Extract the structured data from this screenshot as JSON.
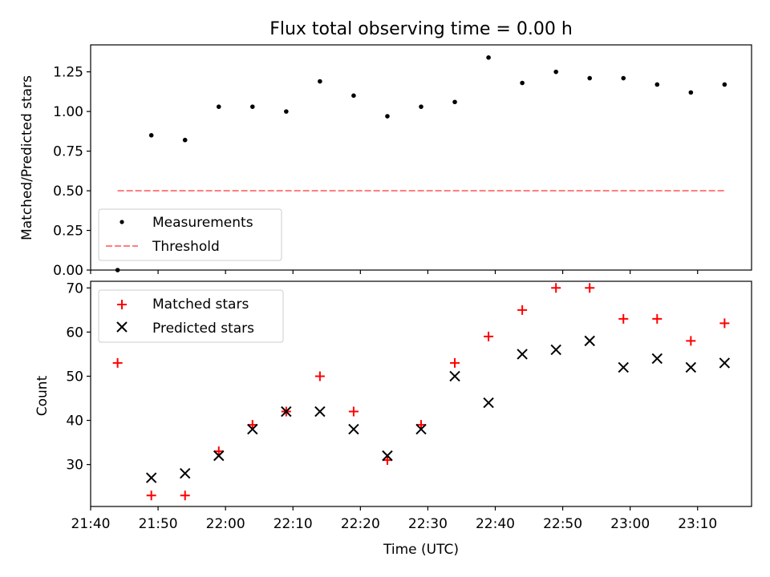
{
  "chart_data": [
    {
      "type": "scatter",
      "title": "Flux total observing time = 0.00 h",
      "xlabel": "",
      "ylabel": "Matched/Predicted stars",
      "ylim": [
        0,
        1.42
      ],
      "yticks": [
        0.0,
        0.25,
        0.5,
        0.75,
        1.0,
        1.25
      ],
      "ytick_labels": [
        "0.00",
        "0.25",
        "0.50",
        "0.75",
        "1.00",
        "1.25"
      ],
      "x": [
        "21:44",
        "21:49",
        "21:54",
        "21:59",
        "22:04",
        "22:09",
        "22:14",
        "22:19",
        "22:24",
        "22:29",
        "22:34",
        "22:39",
        "22:44",
        "22:49",
        "22:54",
        "22:59",
        "23:04",
        "23:09",
        "23:14"
      ],
      "series": [
        {
          "name": "Measurements",
          "marker": "dot",
          "color": "#000000",
          "values": [
            0.0,
            0.85,
            0.82,
            1.03,
            1.03,
            1.0,
            1.19,
            1.1,
            0.97,
            1.03,
            1.06,
            1.34,
            1.18,
            1.25,
            1.21,
            1.21,
            1.17,
            1.12,
            1.17
          ]
        },
        {
          "name": "Threshold",
          "marker": "dashed-line",
          "color": "#ff7f7f",
          "x": [
            "21:44",
            "23:14"
          ],
          "values": [
            0.5,
            0.5
          ]
        }
      ],
      "legend": {
        "placement": "lower-left",
        "entries": [
          "Measurements",
          "Threshold"
        ]
      }
    },
    {
      "type": "scatter",
      "title": "",
      "xlabel": "Time (UTC)",
      "ylabel": "Count",
      "ylim": [
        20.5,
        71.5
      ],
      "yticks": [
        30,
        40,
        50,
        60,
        70
      ],
      "ytick_labels": [
        "30",
        "40",
        "50",
        "60",
        "70"
      ],
      "xlim": [
        "21:40",
        "23:18"
      ],
      "xticks": [
        "21:40",
        "21:50",
        "22:00",
        "22:10",
        "22:20",
        "22:30",
        "22:40",
        "22:50",
        "23:00",
        "23:10"
      ],
      "xtick_labels": [
        "21:40",
        "21:50",
        "22:00",
        "22:10",
        "22:20",
        "22:30",
        "22:40",
        "22:50",
        "23:00",
        "23:10"
      ],
      "x": [
        "21:44",
        "21:49",
        "21:54",
        "21:59",
        "22:04",
        "22:09",
        "22:14",
        "22:19",
        "22:24",
        "22:29",
        "22:34",
        "22:39",
        "22:44",
        "22:49",
        "22:54",
        "22:59",
        "23:04",
        "23:09",
        "23:14"
      ],
      "series": [
        {
          "name": "Matched stars",
          "marker": "plus",
          "color": "#ff0000",
          "values": [
            53,
            23,
            23,
            33,
            39,
            42,
            50,
            42,
            31,
            39,
            53,
            59,
            65,
            70,
            70,
            63,
            63,
            58,
            62
          ]
        },
        {
          "name": "Predicted stars",
          "marker": "x",
          "color": "#000000",
          "values": [
            null,
            27,
            28,
            32,
            38,
            42,
            42,
            38,
            32,
            38,
            50,
            44,
            55,
            56,
            58,
            52,
            54,
            52,
            53
          ]
        }
      ],
      "legend": {
        "placement": "upper-left",
        "entries": [
          "Matched stars",
          "Predicted stars"
        ]
      }
    }
  ]
}
